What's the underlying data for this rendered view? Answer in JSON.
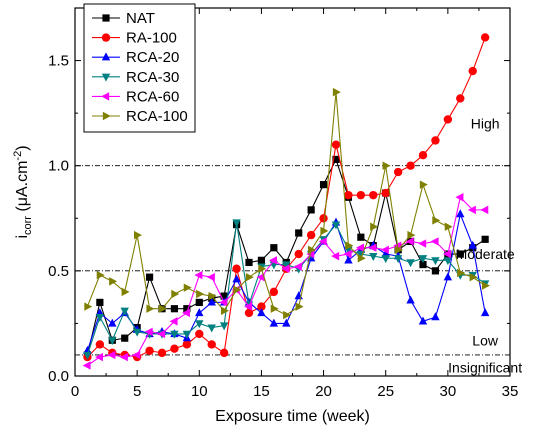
{
  "chart_data": {
    "type": "line",
    "xlabel": "Exposure time (week)",
    "ylabel": {
      "base": "i",
      "sub": "corr",
      "units_pre": " (μA.cm",
      "sup": "-2",
      "units_post": ")"
    },
    "xlim": [
      0,
      35
    ],
    "ylim": [
      0,
      1.75
    ],
    "xticks": [
      0,
      5,
      10,
      15,
      20,
      25,
      30,
      35
    ],
    "yticks": [
      0.0,
      0.5,
      1.0,
      1.5
    ],
    "ytick_labels": [
      "0.0",
      "0.5",
      "1.0",
      "1.5"
    ],
    "legend_position": "top-left",
    "grid": false,
    "threshold_lines": [
      {
        "y": 1.0,
        "label": "High"
      },
      {
        "y": 0.5,
        "label": "Moderate"
      },
      {
        "y": 0.1,
        "label": "Insignificant"
      }
    ],
    "region_labels": [
      {
        "label": "High",
        "x": 33,
        "y": 1.2
      },
      {
        "label": "Moderate",
        "x": 33,
        "y": 0.58
      },
      {
        "label": "Low",
        "x": 33,
        "y": 0.17
      },
      {
        "label": "Insignificant",
        "x": 33,
        "y": 0.04
      }
    ],
    "x": [
      1,
      2,
      3,
      4,
      5,
      6,
      7,
      8,
      9,
      10,
      11,
      12,
      13,
      14,
      15,
      16,
      17,
      18,
      19,
      20,
      21,
      22,
      23,
      24,
      25,
      26,
      27,
      28,
      29,
      30,
      31,
      32,
      33
    ],
    "series": [
      {
        "name": "NAT",
        "color": "#000000",
        "marker": "square",
        "values": [
          0.1,
          0.35,
          0.17,
          0.18,
          0.23,
          0.47,
          0.32,
          0.32,
          0.32,
          0.35,
          0.37,
          0.38,
          0.72,
          0.54,
          0.55,
          0.61,
          0.54,
          0.68,
          0.79,
          0.91,
          1.03,
          0.85,
          0.66,
          0.62,
          0.87,
          0.6,
          0.64,
          0.53,
          0.5,
          0.58,
          0.58,
          0.61,
          0.65
        ]
      },
      {
        "name": "RA-100",
        "color": "#ff0000",
        "marker": "circle",
        "values": [
          0.09,
          0.15,
          0.11,
          0.1,
          0.09,
          0.12,
          0.11,
          0.13,
          0.15,
          0.2,
          0.15,
          0.11,
          0.51,
          0.3,
          0.33,
          0.4,
          0.51,
          0.58,
          0.67,
          0.75,
          1.1,
          0.86,
          0.86,
          0.86,
          0.87,
          0.97,
          1.0,
          1.05,
          1.12,
          1.22,
          1.32,
          1.45,
          1.61
        ]
      },
      {
        "name": "RCA-20",
        "color": "#0000ff",
        "marker": "triangle-up",
        "values": [
          0.12,
          0.3,
          0.25,
          0.3,
          0.22,
          0.2,
          0.21,
          0.2,
          0.18,
          0.3,
          0.35,
          0.35,
          0.46,
          0.35,
          0.3,
          0.25,
          0.25,
          0.38,
          0.56,
          0.64,
          0.73,
          0.55,
          0.6,
          0.62,
          0.58,
          0.57,
          0.36,
          0.26,
          0.28,
          0.47,
          0.77,
          0.62,
          0.3
        ]
      },
      {
        "name": "RCA-30",
        "color": "#008080",
        "marker": "triangle-down",
        "values": [
          0.1,
          0.28,
          0.17,
          0.31,
          0.21,
          0.2,
          0.2,
          0.2,
          0.2,
          0.25,
          0.23,
          0.24,
          0.73,
          0.34,
          0.52,
          0.53,
          0.53,
          0.51,
          0.58,
          0.65,
          0.72,
          0.6,
          0.58,
          0.57,
          0.56,
          0.56,
          0.54,
          0.56,
          0.55,
          0.55,
          0.48,
          0.48,
          0.44
        ]
      },
      {
        "name": "RCA-60",
        "color": "#ff00ff",
        "marker": "triangle-left",
        "values": [
          0.05,
          0.09,
          0.1,
          0.09,
          0.1,
          0.21,
          0.2,
          0.26,
          0.3,
          0.48,
          0.47,
          0.35,
          0.41,
          0.33,
          0.47,
          0.55,
          0.51,
          0.52,
          0.58,
          0.64,
          0.57,
          0.58,
          0.61,
          0.61,
          0.6,
          0.62,
          0.64,
          0.63,
          0.64,
          0.58,
          0.85,
          0.79,
          0.79
        ]
      },
      {
        "name": "RCA-100",
        "color": "#808000",
        "marker": "triangle-right",
        "values": [
          0.33,
          0.48,
          0.45,
          0.4,
          0.67,
          0.32,
          0.32,
          0.39,
          0.42,
          0.39,
          0.38,
          0.31,
          0.41,
          0.47,
          0.51,
          0.32,
          0.29,
          0.33,
          0.6,
          0.69,
          1.35,
          0.62,
          0.56,
          0.71,
          1.0,
          0.6,
          0.67,
          0.91,
          0.74,
          0.71,
          0.49,
          0.47,
          0.43
        ]
      }
    ]
  }
}
